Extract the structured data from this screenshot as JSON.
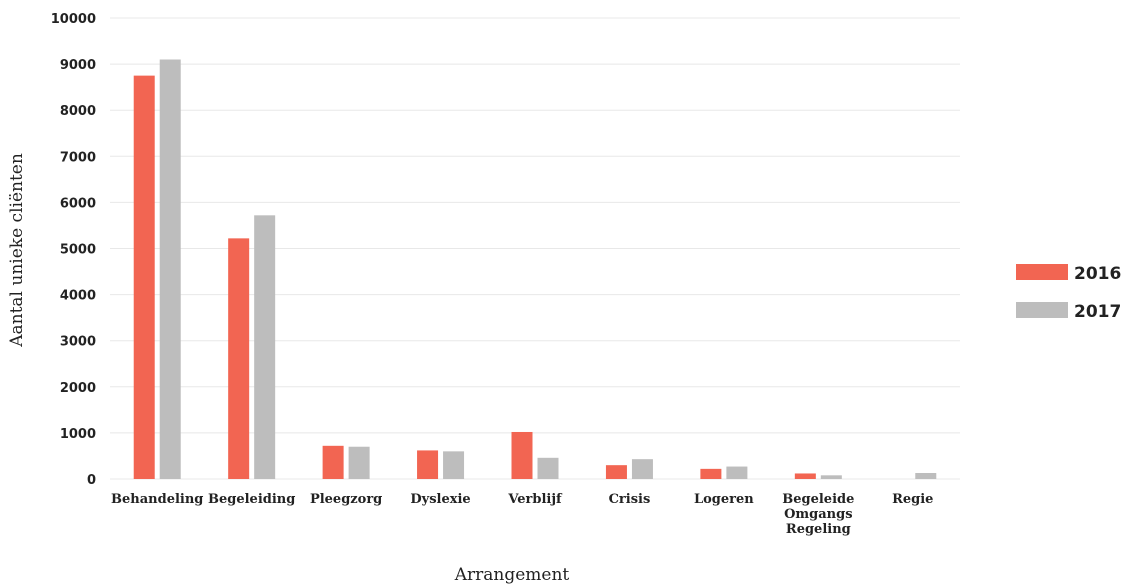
{
  "chart_data": {
    "type": "bar",
    "xlabel": "Arrangement",
    "ylabel": "Aantal unieke cliënten",
    "ylim": [
      0,
      10000
    ],
    "yticks": [
      0,
      1000,
      2000,
      3000,
      4000,
      5000,
      6000,
      7000,
      8000,
      9000,
      10000
    ],
    "grid": true,
    "legend": "right",
    "categories": [
      [
        "Behandeling"
      ],
      [
        "Begeleiding"
      ],
      [
        "Pleegzorg"
      ],
      [
        "Dyslexie"
      ],
      [
        "Verblijf"
      ],
      [
        "Crisis"
      ],
      [
        "Logeren"
      ],
      [
        "Begeleide",
        "Omgangs",
        "Regeling"
      ],
      [
        "Regie"
      ]
    ],
    "series": [
      {
        "name": "2016",
        "color": "#f26552",
        "values": [
          8750,
          5220,
          720,
          620,
          1020,
          300,
          220,
          120,
          0
        ]
      },
      {
        "name": "2017",
        "color": "#bdbdbd",
        "values": [
          9100,
          5720,
          700,
          600,
          460,
          430,
          270,
          80,
          130
        ]
      }
    ]
  }
}
